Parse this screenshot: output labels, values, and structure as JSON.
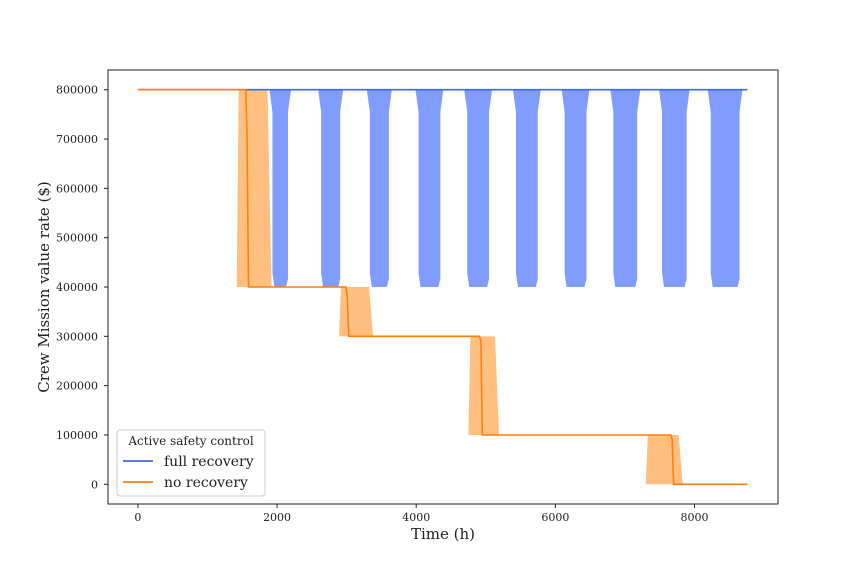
{
  "chart_data": {
    "type": "line",
    "title": "",
    "xlabel": "Time (h)",
    "ylabel": "Crew Mission value rate ($)",
    "xlim": [
      -430,
      9200
    ],
    "ylim": [
      -40000,
      840000
    ],
    "xticks": [
      "0",
      "2000",
      "4000",
      "6000",
      "8000"
    ],
    "yticks": [
      "0",
      "100000",
      "200000",
      "300000",
      "400000",
      "500000",
      "600000",
      "700000",
      "800000"
    ],
    "grid": false,
    "legend": {
      "title": "Active safety control",
      "placement": "bottom-left",
      "entries": [
        "full recovery",
        "no recovery"
      ]
    },
    "series": [
      {
        "name": "full recovery",
        "color": "#4169e1",
        "band_color": "#809cff",
        "x": [
          0,
          8760
        ],
        "y": [
          800000,
          800000
        ],
        "band_intervals": [
          {
            "x0": 1890,
            "x1": 2200
          },
          {
            "x0": 2590,
            "x1": 2950
          },
          {
            "x0": 3290,
            "x1": 3650
          },
          {
            "x0": 3990,
            "x1": 4390
          },
          {
            "x0": 4690,
            "x1": 5090
          },
          {
            "x0": 5390,
            "x1": 5790
          },
          {
            "x0": 6090,
            "x1": 6490
          },
          {
            "x0": 6790,
            "x1": 7220
          },
          {
            "x0": 7490,
            "x1": 7930
          },
          {
            "x0": 8190,
            "x1": 8690
          }
        ],
        "band_low": 400000,
        "band_high": 800000
      },
      {
        "name": "no recovery",
        "color": "#ff7f0e",
        "band_color": "#ffbf80",
        "x": [
          0,
          1550,
          1570,
          1590,
          2990,
          3010,
          3030,
          4910,
          4930,
          4950,
          7660,
          7680,
          7700,
          8760
        ],
        "y": [
          800000,
          800000,
          700000,
          400000,
          400000,
          380000,
          300000,
          300000,
          290000,
          100000,
          100000,
          90000,
          0,
          0
        ],
        "bands": [
          {
            "x0": 1420,
            "x1": 1920,
            "y_low": 400000,
            "y_high": 800000
          },
          {
            "x0": 2890,
            "x1": 3380,
            "y_low": 300000,
            "y_high": 400000
          },
          {
            "x0": 4750,
            "x1": 5190,
            "y_low": 100000,
            "y_high": 300000
          },
          {
            "x0": 7300,
            "x1": 7830,
            "y_low": 0,
            "y_high": 100000
          }
        ]
      }
    ]
  }
}
